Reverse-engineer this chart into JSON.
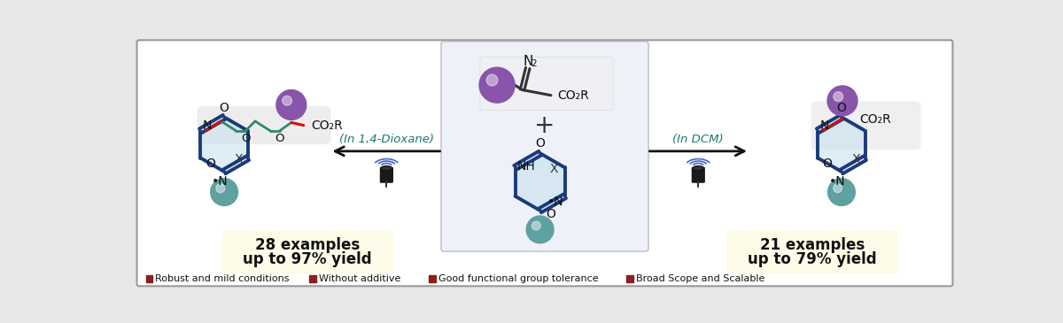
{
  "bg_color": "#e8e8e8",
  "border_color": "#999999",
  "white_bg": "#ffffff",
  "center_box_bg": "#eef1f8",
  "center_box_border": "#bbbbcc",
  "yield_box_bg": "#fdfce8",
  "arrow_left_label": "(In 1,4-Dioxane)",
  "arrow_right_label": "(In DCM)",
  "arrow_color": "#1a7a6e",
  "legend_items": [
    {
      "color": "#8B2020",
      "label": "Robust and mild conditions"
    },
    {
      "color": "#8B2020",
      "label": "Without additive"
    },
    {
      "color": "#8B2020",
      "label": "Good functional group tolerance"
    },
    {
      "color": "#8B2020",
      "label": "Broad Scope and Scalable"
    }
  ],
  "dark_blue": "#1a3a7a",
  "teal_chain": "#2e8b6b",
  "red_bond": "#cc1111",
  "teal_ball_color": "#5fa0a0",
  "purple_ball_color": "#8855aa",
  "speaker_dark": "#222222",
  "speaker_wave": "#4466cc"
}
